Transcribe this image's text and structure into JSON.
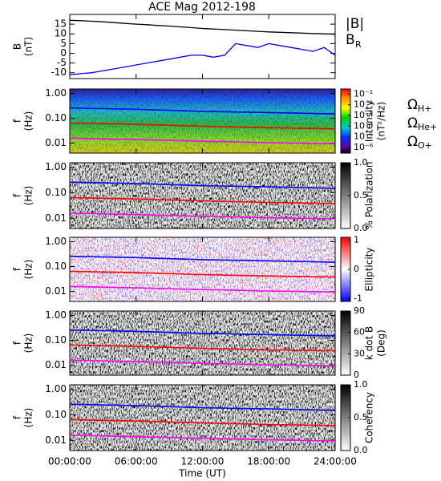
{
  "chart_data": [
    {
      "type": "line",
      "title": "ACE Mag 2012-198",
      "ylabel": [
        "B",
        "(nT)"
      ],
      "x": [
        0,
        1,
        2,
        3,
        4,
        5,
        6,
        7,
        8,
        9,
        10,
        11,
        12,
        13,
        14,
        15,
        16,
        17,
        18,
        19,
        20,
        21,
        22,
        23,
        24
      ],
      "xlim": [
        0,
        24
      ],
      "ylim": [
        -13,
        20
      ],
      "yticks": [
        15,
        10,
        5,
        0,
        -5,
        -10
      ],
      "series": [
        {
          "name": "|B|",
          "color": "#000000",
          "values": [
            17,
            16.8,
            16.5,
            16.2,
            15.8,
            15.4,
            15,
            14.7,
            14.3,
            14,
            13.6,
            13.2,
            12.8,
            12.5,
            12.2,
            11.9,
            11.6,
            11.3,
            11,
            10.8,
            10.6,
            10.4,
            10.2,
            10,
            9.8
          ]
        },
        {
          "name": "B",
          "name_sub": "R",
          "color": "#0000ff",
          "values": [
            -11,
            -10.5,
            -10,
            -9,
            -8,
            -7,
            -6,
            -5,
            -4,
            -3,
            -2,
            -1,
            -1,
            -2,
            -1,
            5,
            4,
            3,
            5,
            4,
            3,
            2,
            1,
            3,
            -1
          ]
        }
      ]
    },
    {
      "type": "spectrogram",
      "ylabel": [
        "f",
        "(Hz)"
      ],
      "ylog": true,
      "x": [
        0,
        6,
        12,
        18,
        24
      ],
      "xlim": [
        0,
        24
      ],
      "ylim": [
        0.004,
        1.5
      ],
      "yticks": [
        {
          "value": 1,
          "label": "1.00"
        },
        {
          "value": 0.1,
          "label": "0.10"
        },
        {
          "value": 0.01,
          "label": "0.01"
        }
      ],
      "colorbar": {
        "label": [
          "Intensity",
          "(nT²/Hz)"
        ],
        "colormap": "rainbow",
        "log": true,
        "lim": [
          3e-07,
          0.3
        ],
        "ticks": [
          {
            "value": 0.1,
            "label": "10⁻¹"
          },
          {
            "value": 0.01,
            "label": "10⁻²"
          },
          {
            "value": 0.001,
            "label": "10⁻³"
          },
          {
            "value": 0.0001,
            "label": "10⁻⁴"
          },
          {
            "value": 1e-05,
            "label": "10⁻⁵"
          },
          {
            "value": 1e-06,
            "label": "10⁻⁶"
          }
        ]
      },
      "legend": true,
      "series": [
        {
          "name": "Ω",
          "name_sub": "H+",
          "color": "#0000ff",
          "values": [
            0.26,
            0.23,
            0.19,
            0.17,
            0.15
          ]
        },
        {
          "name": "Ω",
          "name_sub": "He+",
          "color": "#ff0000",
          "values": [
            0.065,
            0.057,
            0.048,
            0.042,
            0.038
          ]
        },
        {
          "name": "Ω",
          "name_sub": "O+",
          "color": "#ff00ff",
          "values": [
            0.016,
            0.014,
            0.012,
            0.0105,
            0.0095
          ]
        }
      ]
    },
    {
      "type": "spectrogram",
      "ylabel": [
        "f",
        "(Hz)"
      ],
      "ylog": true,
      "x": [
        0,
        6,
        12,
        18,
        24
      ],
      "xlim": [
        0,
        24
      ],
      "ylim": [
        0.004,
        1.5
      ],
      "yticks": [
        {
          "value": 1,
          "label": "1.00"
        },
        {
          "value": 0.1,
          "label": "0.10"
        },
        {
          "value": 0.01,
          "label": "0.01"
        }
      ],
      "colorbar": {
        "label": [
          "% Polarization"
        ],
        "colormap": "gray",
        "lim": [
          0,
          1
        ],
        "ticks": [
          {
            "value": 1,
            "label": "1.0"
          },
          0.5,
          {
            "value": 0,
            "label": "0.0"
          }
        ]
      },
      "series": [
        {
          "color": "#0000ff",
          "values": [
            0.26,
            0.23,
            0.19,
            0.17,
            0.15
          ]
        },
        {
          "color": "#ff0000",
          "values": [
            0.065,
            0.057,
            0.048,
            0.042,
            0.038
          ]
        },
        {
          "color": "#ff00ff",
          "values": [
            0.016,
            0.014,
            0.012,
            0.0105,
            0.0095
          ]
        }
      ]
    },
    {
      "type": "spectrogram",
      "ylabel": [
        "f",
        "(Hz)"
      ],
      "ylog": true,
      "x": [
        0,
        6,
        12,
        18,
        24
      ],
      "xlim": [
        0,
        24
      ],
      "ylim": [
        0.004,
        1.5
      ],
      "yticks": [
        {
          "value": 1,
          "label": "1.00"
        },
        {
          "value": 0.1,
          "label": "0.10"
        },
        {
          "value": 0.01,
          "label": "0.01"
        }
      ],
      "colorbar": {
        "label": [
          "Ellipticity"
        ],
        "colormap": "bwr",
        "lim": [
          -1.1,
          1.1
        ],
        "ticks": [
          1,
          0,
          -1
        ]
      },
      "series": [
        {
          "color": "#0000ff",
          "values": [
            0.26,
            0.23,
            0.19,
            0.17,
            0.15
          ]
        },
        {
          "color": "#ff0000",
          "values": [
            0.065,
            0.057,
            0.048,
            0.042,
            0.038
          ]
        },
        {
          "color": "#ff00ff",
          "values": [
            0.016,
            0.014,
            0.012,
            0.0105,
            0.0095
          ]
        }
      ]
    },
    {
      "type": "spectrogram",
      "ylabel": [
        "f",
        "(Hz)"
      ],
      "ylog": true,
      "x": [
        0,
        6,
        12,
        18,
        24
      ],
      "xlim": [
        0,
        24
      ],
      "ylim": [
        0.004,
        1.5
      ],
      "yticks": [
        {
          "value": 1,
          "label": "1.00"
        },
        {
          "value": 0.1,
          "label": "0.10"
        },
        {
          "value": 0.01,
          "label": "0.01"
        }
      ],
      "colorbar": {
        "label": [
          "k dot B",
          "(Deg)"
        ],
        "colormap": "gray",
        "lim": [
          0,
          90
        ],
        "ticks": [
          90,
          60,
          30,
          0
        ]
      },
      "series": [
        {
          "color": "#0000ff",
          "values": [
            0.26,
            0.23,
            0.19,
            0.17,
            0.15
          ]
        },
        {
          "color": "#ff0000",
          "values": [
            0.065,
            0.057,
            0.048,
            0.042,
            0.038
          ]
        },
        {
          "color": "#ff00ff",
          "values": [
            0.016,
            0.014,
            0.012,
            0.0105,
            0.0095
          ]
        }
      ]
    },
    {
      "type": "spectrogram",
      "ylabel": [
        "f",
        "(Hz)"
      ],
      "ylog": true,
      "xlabel": "Time (UT)",
      "x": [
        0,
        6,
        12,
        18,
        24
      ],
      "xlim": [
        0,
        24
      ],
      "ylim": [
        0.004,
        1.5
      ],
      "xticks": [
        {
          "value": 0,
          "label": "00:00:00"
        },
        {
          "value": 6,
          "label": "06:00:00"
        },
        {
          "value": 12,
          "label": "12:00:00"
        },
        {
          "value": 18,
          "label": "18:00:00"
        },
        {
          "value": 24,
          "label": "24:00:00"
        }
      ],
      "yticks": [
        {
          "value": 1,
          "label": "1.00"
        },
        {
          "value": 0.1,
          "label": "0.10"
        },
        {
          "value": 0.01,
          "label": "0.01"
        }
      ],
      "colorbar": {
        "label": [
          "Coherency"
        ],
        "colormap": "gray",
        "lim": [
          0,
          1
        ],
        "ticks": [
          {
            "value": 1,
            "label": "1.0"
          },
          0.5,
          {
            "value": 0,
            "label": "0.0"
          }
        ]
      },
      "series": [
        {
          "color": "#0000ff",
          "values": [
            0.26,
            0.23,
            0.19,
            0.17,
            0.15
          ]
        },
        {
          "color": "#ff0000",
          "values": [
            0.065,
            0.057,
            0.048,
            0.042,
            0.038
          ]
        },
        {
          "color": "#ff00ff",
          "values": [
            0.016,
            0.014,
            0.012,
            0.0105,
            0.0095
          ]
        }
      ]
    }
  ]
}
